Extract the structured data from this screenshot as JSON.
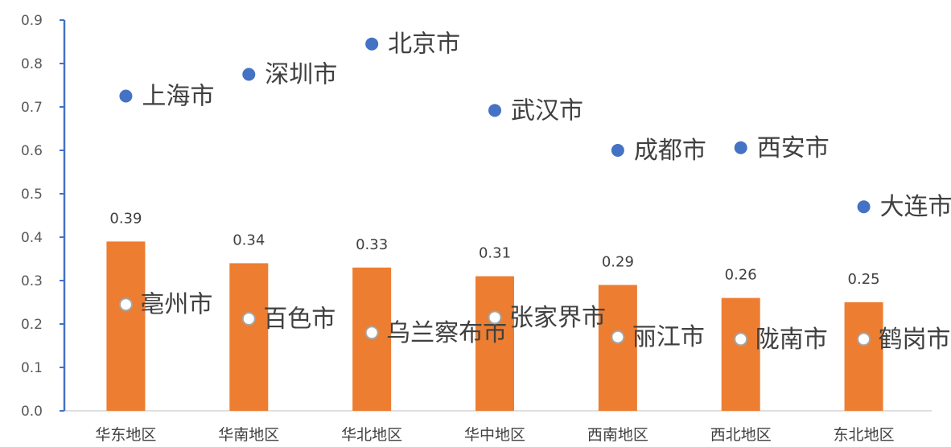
{
  "chart_data": {
    "type": "bar",
    "categories": [
      "华东地区",
      "华南地区",
      "华北地区",
      "华中地区",
      "西南地区",
      "西北地区",
      "东北地区"
    ],
    "ylim": [
      0,
      0.9
    ],
    "yticks": [
      "0.0",
      "0.1",
      "0.2",
      "0.3",
      "0.4",
      "0.5",
      "0.6",
      "0.7",
      "0.8",
      "0.9"
    ],
    "grid": false,
    "legend": "none",
    "colors": {
      "bar": "#ED7D31",
      "top_point": "#4472C4",
      "bottom_point_fill": "#FFFFFF",
      "bottom_point_stroke": "#A5A5A5",
      "axis": "#4472C4"
    },
    "bars": {
      "values": [
        0.39,
        0.34,
        0.33,
        0.31,
        0.29,
        0.26,
        0.25
      ],
      "labels": [
        "0.39",
        "0.34",
        "0.33",
        "0.31",
        "0.29",
        "0.26",
        "0.25"
      ]
    },
    "top_points": {
      "cities": [
        "上海市",
        "深圳市",
        "北京市",
        "武汉市",
        "成都市",
        "西安市",
        "大连市"
      ],
      "values": [
        0.725,
        0.775,
        0.845,
        0.692,
        0.6,
        0.606,
        0.47
      ]
    },
    "bottom_points": {
      "cities": [
        "亳州市",
        "百色市",
        "乌兰察布市",
        "张家界市",
        "丽江市",
        "陇南市",
        "鹤岗市"
      ],
      "values": [
        0.245,
        0.212,
        0.18,
        0.215,
        0.17,
        0.165,
        0.165
      ]
    }
  }
}
